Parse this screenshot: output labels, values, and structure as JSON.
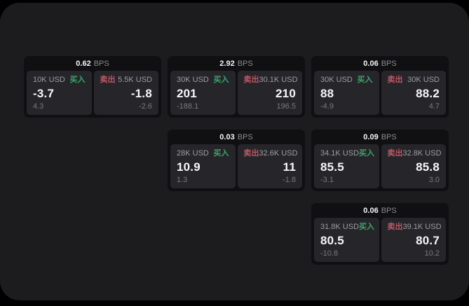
{
  "theme": {
    "panel_bg": "#1c1c1e",
    "card_bg": "#101012",
    "cell_bg": "#26262a",
    "buy_color": "#3da368",
    "sell_color": "#bd5765",
    "text_primary": "#f7f7f8",
    "text_muted": "#9c9ca2",
    "text_dim": "#77777d"
  },
  "labels": {
    "bps_unit": "BPS",
    "buy": "买入",
    "sell": "卖出"
  },
  "cards": [
    {
      "bps": "0.62",
      "row": 1,
      "col": 1,
      "buy": {
        "amount": "10K USD",
        "price": "-3.7",
        "delta": "4.3"
      },
      "sell": {
        "amount": "5.5K USD",
        "price": "-1.8",
        "delta": "-2.6"
      }
    },
    {
      "bps": "2.92",
      "row": 1,
      "col": 2,
      "buy": {
        "amount": "30K USD",
        "price": "201",
        "delta": "-188.1"
      },
      "sell": {
        "amount": "30.1K USD",
        "price": "210",
        "delta": "196.5"
      }
    },
    {
      "bps": "0.06",
      "row": 1,
      "col": 3,
      "buy": {
        "amount": "30K USD",
        "price": "88",
        "delta": "-4.9"
      },
      "sell": {
        "amount": "30K USD",
        "price": "88.2",
        "delta": "4.7"
      }
    },
    {
      "bps": "0.03",
      "row": 2,
      "col": 2,
      "buy": {
        "amount": "28K USD",
        "price": "10.9",
        "delta": "1.3"
      },
      "sell": {
        "amount": "32.6K USD",
        "price": "11",
        "delta": "-1.8"
      }
    },
    {
      "bps": "0.09",
      "row": 2,
      "col": 3,
      "buy": {
        "amount": "34.1K USD",
        "price": "85.5",
        "delta": "-3.1"
      },
      "sell": {
        "amount": "32.8K USD",
        "price": "85.8",
        "delta": "3.0"
      }
    },
    {
      "bps": "0.06",
      "row": 3,
      "col": 3,
      "buy": {
        "amount": "31.8K USD",
        "price": "80.5",
        "delta": "-10.8"
      },
      "sell": {
        "amount": "39.1K USD",
        "price": "80.7",
        "delta": "10.2"
      }
    }
  ]
}
